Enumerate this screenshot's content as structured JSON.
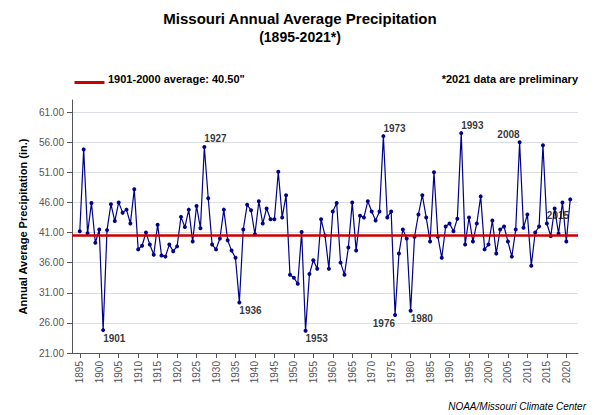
{
  "chart_data": {
    "type": "line",
    "title": "Missouri Annual Average Precipitation",
    "subtitle": "(1895-2021*)",
    "ylabel": "Annual Average Precipitation (in.)",
    "x": [
      1895,
      1896,
      1897,
      1898,
      1899,
      1900,
      1901,
      1902,
      1903,
      1904,
      1905,
      1906,
      1907,
      1908,
      1909,
      1910,
      1911,
      1912,
      1913,
      1914,
      1915,
      1916,
      1917,
      1918,
      1919,
      1920,
      1921,
      1922,
      1923,
      1924,
      1925,
      1926,
      1927,
      1928,
      1929,
      1930,
      1931,
      1932,
      1933,
      1934,
      1935,
      1936,
      1937,
      1938,
      1939,
      1940,
      1941,
      1942,
      1943,
      1944,
      1945,
      1946,
      1947,
      1948,
      1949,
      1950,
      1951,
      1952,
      1953,
      1954,
      1955,
      1956,
      1957,
      1958,
      1959,
      1960,
      1961,
      1962,
      1963,
      1964,
      1965,
      1966,
      1967,
      1968,
      1969,
      1970,
      1971,
      1972,
      1973,
      1974,
      1975,
      1976,
      1977,
      1978,
      1979,
      1980,
      1981,
      1982,
      1983,
      1984,
      1985,
      1986,
      1987,
      1988,
      1989,
      1990,
      1991,
      1992,
      1993,
      1994,
      1995,
      1996,
      1997,
      1998,
      1999,
      2000,
      2001,
      2002,
      2003,
      2004,
      2005,
      2006,
      2007,
      2008,
      2009,
      2010,
      2011,
      2012,
      2013,
      2014,
      2015,
      2016,
      2017,
      2018,
      2019,
      2020,
      2021
    ],
    "values": [
      41.2,
      54.8,
      40.9,
      45.9,
      39.3,
      41.5,
      24.8,
      41.4,
      45.7,
      42.9,
      46.0,
      44.3,
      44.8,
      42.5,
      48.2,
      38.2,
      38.8,
      41.0,
      39.0,
      37.3,
      42.3,
      37.2,
      37.0,
      39.0,
      37.9,
      38.7,
      43.6,
      41.9,
      44.8,
      39.5,
      45.4,
      41.7,
      55.2,
      46.7,
      39.0,
      38.2,
      40.0,
      44.8,
      39.7,
      38.0,
      36.8,
      29.4,
      41.5,
      45.6,
      44.7,
      40.7,
      46.2,
      42.5,
      45.0,
      43.2,
      43.2,
      51.1,
      43.5,
      47.2,
      34.0,
      33.5,
      32.5,
      41.1,
      24.7,
      34.1,
      36.4,
      35.0,
      43.2,
      40.5,
      35.0,
      44.5,
      45.9,
      36.0,
      34.0,
      38.5,
      46.0,
      38.0,
      43.8,
      43.5,
      46.2,
      44.5,
      43.0,
      44.5,
      57.0,
      43.5,
      44.5,
      27.3,
      37.5,
      41.5,
      40.0,
      28.0,
      40.3,
      44.0,
      47.2,
      43.5,
      39.5,
      51.0,
      40.3,
      36.8,
      42.0,
      42.5,
      41.2,
      43.3,
      57.5,
      39.0,
      43.5,
      39.5,
      42.5,
      47.0,
      38.2,
      39.0,
      43.0,
      37.5,
      41.5,
      42.0,
      39.5,
      37.0,
      41.5,
      56.0,
      41.8,
      44.0,
      35.5,
      41.0,
      42.0,
      55.5,
      42.5,
      40.4,
      45.0,
      40.8,
      46.0,
      39.5,
      46.5
    ],
    "color": "#00008B",
    "marker": "circle",
    "xlim": [
      1893,
      2023
    ],
    "xticks": [
      1895,
      1900,
      1905,
      1910,
      1915,
      1920,
      1925,
      1930,
      1935,
      1940,
      1945,
      1950,
      1955,
      1960,
      1965,
      1970,
      1975,
      1980,
      1985,
      1990,
      1995,
      2000,
      2005,
      2010,
      2015,
      2020
    ],
    "ylim": [
      21.0,
      63.0
    ],
    "yticks": [
      {
        "value": 21.0,
        "label": "21.00"
      },
      {
        "value": 26.0,
        "label": "26.00"
      },
      {
        "value": 31.0,
        "label": "31.00"
      },
      {
        "value": 36.0,
        "label": "36.00"
      },
      {
        "value": 41.0,
        "label": "41.00"
      },
      {
        "value": 46.0,
        "label": "46.00"
      },
      {
        "value": 51.0,
        "label": "51.00"
      },
      {
        "value": 56.0,
        "label": "56.00"
      },
      {
        "value": 61.0,
        "label": "61.00"
      }
    ],
    "grid": true,
    "reference_line": {
      "value": 40.5,
      "label": "1901-2000 average: 40.50\"",
      "color": "#CC0000"
    },
    "annotations": [
      {
        "text": "1901",
        "x": 1901
      },
      {
        "text": "1927",
        "x": 1927
      },
      {
        "text": "1936",
        "x": 1936
      },
      {
        "text": "1953",
        "x": 1953
      },
      {
        "text": "1973",
        "x": 1973
      },
      {
        "text": "1976",
        "x": 1976
      },
      {
        "text": "1980",
        "x": 1980
      },
      {
        "text": "1993",
        "x": 1993
      },
      {
        "text": "2008",
        "x": 2008
      },
      {
        "text": "2015",
        "x": 2015
      }
    ],
    "note": "*2021 data are preliminary",
    "credit": "NOAA/Missouri Climate Center"
  }
}
